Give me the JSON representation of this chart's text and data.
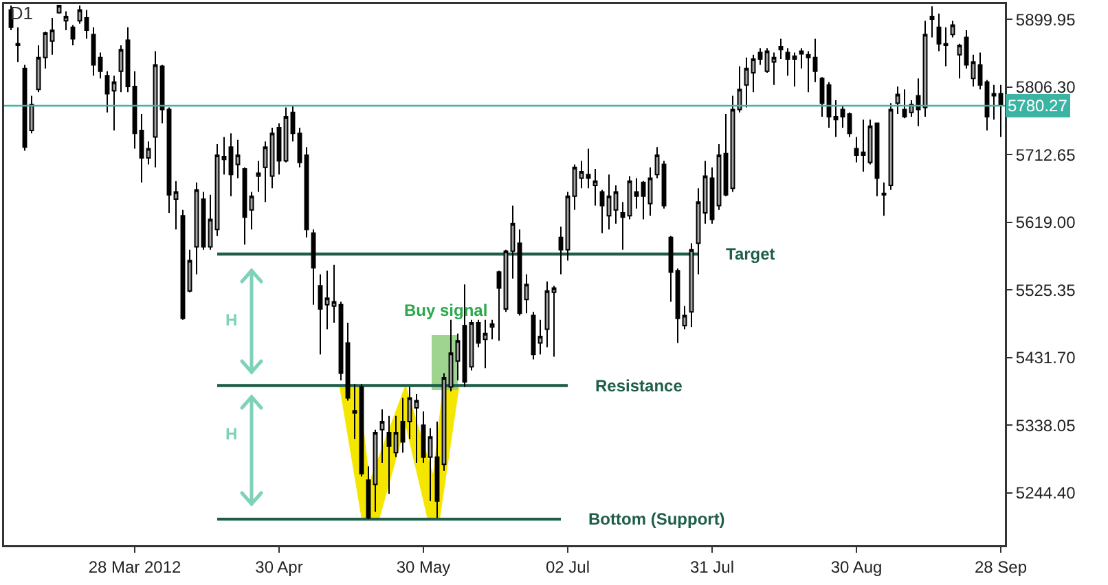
{
  "chart_data": {
    "type": "candlestick",
    "title": "D1",
    "categories": [
      null,
      null,
      null,
      null,
      null,
      null,
      null,
      null,
      null,
      null,
      null,
      null,
      null,
      null,
      null,
      null,
      null,
      null,
      "28 Mar 2012",
      null,
      null,
      null,
      null,
      null,
      null,
      null,
      null,
      null,
      null,
      null,
      null,
      null,
      null,
      null,
      null,
      null,
      null,
      null,
      null,
      "30 Apr",
      null,
      null,
      null,
      null,
      null,
      null,
      null,
      null,
      null,
      null,
      null,
      null,
      null,
      null,
      null,
      null,
      null,
      null,
      null,
      null,
      "30 May",
      null,
      null,
      null,
      null,
      null,
      null,
      null,
      null,
      null,
      null,
      null,
      null,
      null,
      null,
      null,
      null,
      null,
      null,
      null,
      null,
      "02 Jul",
      null,
      null,
      null,
      null,
      null,
      null,
      null,
      null,
      null,
      null,
      null,
      null,
      null,
      null,
      null,
      null,
      null,
      null,
      null,
      null,
      "31 Jul",
      null,
      null,
      null,
      null,
      null,
      null,
      null,
      null,
      null,
      null,
      null,
      null,
      null,
      null,
      null,
      null,
      null,
      null,
      null,
      null,
      "30 Aug",
      null,
      null,
      null,
      null,
      null,
      null,
      null,
      null,
      null,
      null,
      null,
      null,
      null,
      null,
      null,
      null,
      null,
      null,
      null,
      null,
      "28 Sep"
    ],
    "ohlc": [
      [
        5913,
        5919,
        5885,
        5889
      ],
      [
        5866,
        5889,
        5841,
        5864
      ],
      [
        5832,
        5837,
        5718,
        5723
      ],
      [
        5746,
        5794,
        5742,
        5782
      ],
      [
        5803,
        5864,
        5799,
        5847
      ],
      [
        5847,
        5883,
        5832,
        5881
      ],
      [
        5870,
        5902,
        5851,
        5885
      ],
      [
        5909,
        5919,
        5908,
        5919
      ],
      [
        5898,
        5911,
        5885,
        5904
      ],
      [
        5889,
        5892,
        5864,
        5873
      ],
      [
        5898,
        5919,
        5894,
        5913
      ],
      [
        5902,
        5913,
        5873,
        5885
      ],
      [
        5879,
        5889,
        5822,
        5837
      ],
      [
        5847,
        5854,
        5818,
        5828
      ],
      [
        5822,
        5828,
        5771,
        5797
      ],
      [
        5801,
        5822,
        5746,
        5813
      ],
      [
        5828,
        5864,
        5799,
        5858
      ],
      [
        5871,
        5889,
        5799,
        5807
      ],
      [
        5807,
        5828,
        5721,
        5742
      ],
      [
        5746,
        5769,
        5674,
        5708
      ],
      [
        5708,
        5731,
        5699,
        5721
      ],
      [
        5737,
        5856,
        5695,
        5837
      ],
      [
        5835,
        5837,
        5756,
        5775
      ],
      [
        5775,
        5778,
        5632,
        5657
      ],
      [
        5651,
        5676,
        5609,
        5661
      ],
      [
        5628,
        5636,
        5484,
        5486
      ],
      [
        5524,
        5581,
        5522,
        5566
      ],
      [
        5585,
        5674,
        5547,
        5664
      ],
      [
        5651,
        5661,
        5581,
        5585
      ],
      [
        5585,
        5657,
        5581,
        5623
      ],
      [
        5609,
        5727,
        5600,
        5712
      ],
      [
        5706,
        5737,
        5685,
        5710
      ],
      [
        5723,
        5742,
        5655,
        5685
      ],
      [
        5699,
        5733,
        5680,
        5712
      ],
      [
        5693,
        5695,
        5588,
        5626
      ],
      [
        5636,
        5661,
        5609,
        5655
      ],
      [
        5683,
        5704,
        5661,
        5687
      ],
      [
        5695,
        5731,
        5647,
        5723
      ],
      [
        5683,
        5750,
        5666,
        5742
      ],
      [
        5750,
        5756,
        5685,
        5704
      ],
      [
        5704,
        5778,
        5702,
        5765
      ],
      [
        5771,
        5780,
        5731,
        5742
      ],
      [
        5742,
        5750,
        5695,
        5702
      ],
      [
        5712,
        5723,
        5598,
        5609
      ],
      [
        5604,
        5609,
        5505,
        5556
      ],
      [
        5531,
        5547,
        5436,
        5499
      ],
      [
        5505,
        5552,
        5471,
        5514
      ],
      [
        5503,
        5560,
        5480,
        5509
      ],
      [
        5505,
        5509,
        5400,
        5410
      ],
      [
        5452,
        5480,
        5372,
        5376
      ],
      [
        5355,
        5395,
        5319,
        5358
      ],
      [
        5391,
        5395,
        5267,
        5271
      ],
      [
        5262,
        5281,
        5208,
        5210
      ],
      [
        5256,
        5332,
        5218,
        5328
      ],
      [
        5332,
        5360,
        5286,
        5343
      ],
      [
        5328,
        5351,
        5243,
        5309
      ],
      [
        5300,
        5351,
        5294,
        5328
      ],
      [
        5343,
        5376,
        5300,
        5315
      ],
      [
        5343,
        5391,
        5319,
        5376
      ],
      [
        5362,
        5381,
        5286,
        5372
      ],
      [
        5338,
        5357,
        5286,
        5294
      ],
      [
        5294,
        5334,
        5233,
        5322
      ],
      [
        5294,
        5343,
        5210,
        5233
      ],
      [
        5284,
        5410,
        5275,
        5404
      ],
      [
        5391,
        5484,
        5385,
        5438
      ],
      [
        5427,
        5465,
        5400,
        5455
      ],
      [
        5476,
        5533,
        5391,
        5398
      ],
      [
        5419,
        5484,
        5414,
        5480
      ],
      [
        5480,
        5484,
        5446,
        5452
      ],
      [
        5457,
        5484,
        5417,
        5465
      ],
      [
        5474,
        5484,
        5457,
        5478
      ],
      [
        5550,
        5552,
        5455,
        5528
      ],
      [
        5499,
        5581,
        5495,
        5579
      ],
      [
        5579,
        5642,
        5541,
        5617
      ],
      [
        5590,
        5609,
        5490,
        5493
      ],
      [
        5512,
        5547,
        5493,
        5533
      ],
      [
        5490,
        5495,
        5429,
        5436
      ],
      [
        5452,
        5484,
        5436,
        5461
      ],
      [
        5471,
        5537,
        5446,
        5524
      ],
      [
        5522,
        5531,
        5433,
        5528
      ],
      [
        5598,
        5613,
        5547,
        5581
      ],
      [
        5581,
        5661,
        5566,
        5655
      ],
      [
        5655,
        5699,
        5636,
        5695
      ],
      [
        5680,
        5704,
        5666,
        5689
      ],
      [
        5685,
        5721,
        5666,
        5680
      ],
      [
        5670,
        5693,
        5642,
        5676
      ],
      [
        5661,
        5664,
        5604,
        5642
      ],
      [
        5628,
        5685,
        5609,
        5655
      ],
      [
        5636,
        5670,
        5617,
        5661
      ],
      [
        5632,
        5647,
        5581,
        5626
      ],
      [
        5628,
        5683,
        5623,
        5676
      ],
      [
        5661,
        5680,
        5638,
        5655
      ],
      [
        5674,
        5676,
        5623,
        5655
      ],
      [
        5645,
        5695,
        5628,
        5680
      ],
      [
        5685,
        5723,
        5680,
        5712
      ],
      [
        5699,
        5704,
        5638,
        5642
      ],
      [
        5598,
        5600,
        5509,
        5550
      ],
      [
        5552,
        5555,
        5452,
        5486
      ],
      [
        5476,
        5503,
        5471,
        5490
      ],
      [
        5495,
        5590,
        5474,
        5581
      ],
      [
        5590,
        5666,
        5547,
        5647
      ],
      [
        5632,
        5704,
        5617,
        5683
      ],
      [
        5680,
        5695,
        5617,
        5623
      ],
      [
        5642,
        5727,
        5636,
        5712
      ],
      [
        5714,
        5769,
        5655,
        5657
      ],
      [
        5666,
        5794,
        5661,
        5775
      ],
      [
        5775,
        5835,
        5771,
        5803
      ],
      [
        5809,
        5847,
        5778,
        5832
      ],
      [
        5826,
        5851,
        5799,
        5845
      ],
      [
        5854,
        5860,
        5837,
        5845
      ],
      [
        5828,
        5860,
        5826,
        5856
      ],
      [
        5841,
        5854,
        5809,
        5847
      ],
      [
        5858,
        5873,
        5845,
        5862
      ],
      [
        5854,
        5860,
        5822,
        5845
      ],
      [
        5845,
        5854,
        5807,
        5849
      ],
      [
        5852,
        5860,
        5832,
        5856
      ],
      [
        5847,
        5856,
        5799,
        5851
      ],
      [
        5847,
        5873,
        5813,
        5828
      ],
      [
        5818,
        5820,
        5765,
        5784
      ],
      [
        5809,
        5813,
        5750,
        5765
      ],
      [
        5765,
        5788,
        5737,
        5761
      ],
      [
        5775,
        5780,
        5750,
        5765
      ],
      [
        5769,
        5771,
        5737,
        5742
      ],
      [
        5721,
        5737,
        5702,
        5712
      ],
      [
        5716,
        5761,
        5689,
        5712
      ],
      [
        5702,
        5761,
        5699,
        5752
      ],
      [
        5756,
        5757,
        5655,
        5680
      ],
      [
        5659,
        5674,
        5628,
        5657
      ],
      [
        5670,
        5784,
        5664,
        5775
      ],
      [
        5784,
        5807,
        5769,
        5796
      ],
      [
        5775,
        5803,
        5763,
        5765
      ],
      [
        5771,
        5788,
        5765,
        5782
      ],
      [
        5794,
        5818,
        5752,
        5775
      ],
      [
        5778,
        5898,
        5765,
        5879
      ],
      [
        5904,
        5918,
        5875,
        5900
      ],
      [
        5889,
        5908,
        5856,
        5866
      ],
      [
        5866,
        5889,
        5835,
        5864
      ],
      [
        5879,
        5898,
        5875,
        5892
      ],
      [
        5851,
        5866,
        5818,
        5864
      ],
      [
        5875,
        5885,
        5832,
        5837
      ],
      [
        5818,
        5851,
        5807,
        5841
      ],
      [
        5837,
        5854,
        5803,
        5809
      ],
      [
        5813,
        5816,
        5746,
        5765
      ],
      [
        5794,
        5809,
        5761,
        5797
      ],
      [
        5797,
        5809,
        5737,
        5780.27
      ]
    ],
    "ylim": [
      5172,
      5921
    ],
    "yticks": [
      5899.95,
      {
        "value": 5806.3,
        "label": "5806.30"
      },
      5712.65,
      {
        "value": 5619,
        "label": "5619.00"
      },
      5525.35,
      {
        "value": 5431.7,
        "label": "5431.70"
      },
      5338.05,
      {
        "value": 5244.4,
        "label": "5244.40"
      }
    ],
    "ref_lines": [
      {
        "axis": "y",
        "value": 5780.27,
        "label": "5780.27",
        "color": "#3cb4a4"
      },
      {
        "axis": "y",
        "value": 5575,
        "label": "Target",
        "color": "#1e5e48"
      },
      {
        "axis": "y",
        "value": 5393,
        "label": "Resistance",
        "color": "#1e5e48"
      },
      {
        "axis": "y",
        "value": 5208,
        "label": "Bottom (Support)",
        "color": "#1e5e48"
      }
    ],
    "annotations": [
      "Buy signal",
      "H",
      "H"
    ],
    "grid": false
  }
}
